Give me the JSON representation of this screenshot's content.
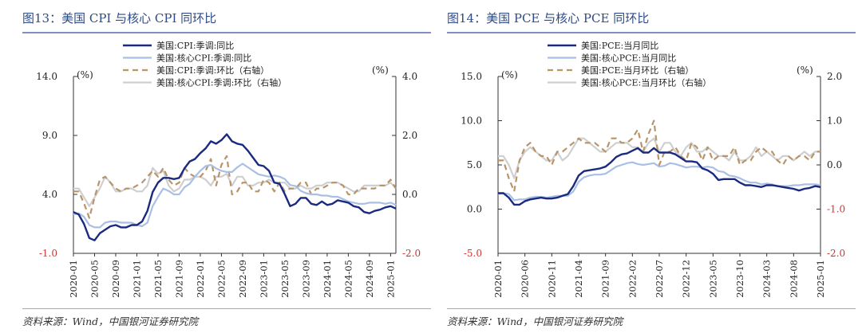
{
  "source_text": "资料来源：Wind，中国银河证券研究院",
  "colors": {
    "navy": "#1a2a80",
    "lightblue": "#a9bfe3",
    "tan": "#b8946a",
    "gray": "#cfcfcf",
    "red": "#d4322c",
    "title": "#2e4a86"
  },
  "chart_data": [
    {
      "type": "line",
      "title": "图13：美国 CPI 与核心 CPI 同环比",
      "y_unit_left": "(%)",
      "y_unit_right": "(%)",
      "ylim_left": [
        -1.0,
        14.0
      ],
      "ylim_right": [
        -2.0,
        4.0
      ],
      "yticks_left": [
        "14.0",
        "9.0",
        "4.0",
        "-1.0"
      ],
      "yticks_right": [
        "4.0",
        "2.0",
        "0.0",
        "-2.0"
      ],
      "x_range": [
        "2020-01",
        "2025-02"
      ],
      "xticks": [
        "2020-01",
        "2020-05",
        "2020-09",
        "2021-01",
        "2021-05",
        "2021-09",
        "2022-01",
        "2022-05",
        "2022-09",
        "2023-01",
        "2023-05",
        "2023-09",
        "2024-01",
        "2024-05",
        "2024-09",
        "2025-01"
      ],
      "legend": [
        "美国:CPI:季调:同比",
        "美国:核心CPI:季调:同比",
        "美国:CPI:季调:环比（右轴）",
        "美国:核心CPI:季调:环比（右轴）"
      ],
      "series": [
        {
          "name": "美国:CPI:季调:同比",
          "axis": "left",
          "style": "solid-dark",
          "start": "2020-01",
          "values": [
            2.5,
            2.3,
            1.5,
            0.3,
            0.1,
            0.7,
            1.0,
            1.3,
            1.4,
            1.2,
            1.2,
            1.4,
            1.4,
            1.7,
            2.6,
            4.2,
            5.0,
            5.4,
            5.4,
            5.3,
            5.4,
            6.2,
            6.8,
            7.0,
            7.5,
            7.9,
            8.5,
            8.3,
            8.6,
            9.1,
            8.5,
            8.3,
            8.2,
            7.7,
            7.1,
            6.5,
            6.4,
            6.0,
            5.0,
            4.9,
            4.0,
            3.0,
            3.2,
            3.7,
            3.7,
            3.2,
            3.1,
            3.4,
            3.1,
            3.2,
            3.5,
            3.4,
            3.3,
            3.0,
            2.9,
            2.5,
            2.4,
            2.6,
            2.7,
            2.9,
            3.0,
            2.8
          ]
        },
        {
          "name": "美国:核心CPI:季调:同比",
          "axis": "left",
          "style": "solid-light",
          "start": "2020-01",
          "values": [
            2.3,
            2.4,
            2.1,
            1.4,
            1.2,
            1.2,
            1.6,
            1.7,
            1.7,
            1.6,
            1.6,
            1.6,
            1.4,
            1.3,
            1.6,
            3.0,
            3.8,
            4.5,
            4.3,
            4.0,
            4.0,
            4.6,
            4.9,
            5.5,
            6.0,
            6.4,
            6.5,
            6.2,
            6.0,
            5.9,
            5.9,
            6.3,
            6.6,
            6.3,
            6.0,
            5.7,
            5.6,
            5.5,
            5.6,
            5.5,
            5.3,
            4.8,
            4.7,
            4.3,
            4.1,
            4.0,
            4.0,
            3.9,
            3.9,
            3.8,
            3.8,
            3.6,
            3.4,
            3.3,
            3.2,
            3.2,
            3.3,
            3.3,
            3.3,
            3.2,
            3.3,
            3.1
          ]
        },
        {
          "name": "美国:CPI:季调:环比（右轴）",
          "axis": "right",
          "style": "dashed-tan",
          "start": "2020-01",
          "values": [
            0.1,
            0.1,
            -0.3,
            -0.8,
            -0.1,
            0.5,
            0.6,
            0.4,
            0.2,
            0.1,
            0.2,
            0.2,
            0.3,
            0.4,
            0.6,
            0.8,
            0.6,
            0.9,
            0.5,
            0.3,
            0.4,
            0.9,
            0.7,
            0.6,
            0.6,
            0.8,
            1.2,
            0.3,
            1.0,
            1.3,
            0.0,
            0.1,
            0.4,
            0.4,
            0.1,
            0.1,
            0.5,
            0.4,
            0.1,
            0.4,
            0.1,
            0.2,
            0.2,
            0.4,
            0.4,
            0.0,
            0.2,
            0.2,
            0.3,
            0.4,
            0.4,
            0.3,
            0.0,
            0.0,
            0.2,
            0.2,
            0.2,
            0.2,
            0.3,
            0.3,
            0.5,
            0.2
          ]
        },
        {
          "name": "美国:核心CPI:季调:环比（右轴）",
          "axis": "right",
          "style": "solid-gray",
          "start": "2020-01",
          "values": [
            0.2,
            0.2,
            -0.1,
            -0.4,
            -0.1,
            0.2,
            0.6,
            0.4,
            0.1,
            0.1,
            0.2,
            0.2,
            0.1,
            0.1,
            0.3,
            0.9,
            0.7,
            0.8,
            0.3,
            0.1,
            0.2,
            0.5,
            0.5,
            0.6,
            0.6,
            0.5,
            0.3,
            0.6,
            0.6,
            0.7,
            0.3,
            0.6,
            0.6,
            0.3,
            0.3,
            0.4,
            0.4,
            0.5,
            0.4,
            0.4,
            0.4,
            0.2,
            0.2,
            0.3,
            0.2,
            0.2,
            0.3,
            0.3,
            0.4,
            0.4,
            0.4,
            0.3,
            0.2,
            0.1,
            0.1,
            0.3,
            0.3,
            0.3,
            0.3,
            0.3,
            0.4,
            0.2
          ]
        }
      ]
    },
    {
      "type": "line",
      "title": "图14：美国 PCE 与核心 PCE 同环比",
      "y_unit_left": "(%)",
      "y_unit_right": "(%)",
      "ylim_left": [
        -5.0,
        15.0
      ],
      "ylim_right": [
        -2.0,
        2.0
      ],
      "yticks_left": [
        "15.0",
        "10.0",
        "5.0",
        "0.0",
        "-5.0"
      ],
      "yticks_right": [
        "2.0",
        "1.0",
        "0.0",
        "-1.0",
        "-2.0"
      ],
      "x_range": [
        "2020-01",
        "2025-01"
      ],
      "xticks": [
        "2020-01",
        "2020-06",
        "2020-11",
        "2021-04",
        "2021-09",
        "2022-02",
        "2022-07",
        "2022-12",
        "2023-05",
        "2023-10",
        "2024-03",
        "2024-08",
        "2025-01"
      ],
      "legend": [
        "美国:PCE:当月同比",
        "美国:核心PCE:当月同比",
        "美国:PCE:当月环比（右轴）",
        "美国:核心PCE:当月环比（右轴）"
      ],
      "series": [
        {
          "name": "美国:PCE:当月同比",
          "axis": "left",
          "style": "solid-dark",
          "start": "2020-01",
          "values": [
            1.8,
            1.8,
            1.3,
            0.5,
            0.5,
            0.9,
            1.1,
            1.2,
            1.3,
            1.2,
            1.2,
            1.3,
            1.5,
            1.7,
            2.6,
            3.8,
            4.3,
            4.4,
            4.5,
            4.6,
            4.8,
            5.3,
            5.9,
            6.2,
            6.3,
            6.6,
            6.9,
            6.4,
            6.4,
            6.9,
            6.4,
            6.4,
            6.4,
            6.2,
            5.8,
            5.4,
            5.4,
            5.3,
            4.6,
            4.4,
            4.0,
            3.3,
            3.4,
            3.4,
            3.4,
            3.0,
            2.7,
            2.7,
            2.6,
            2.5,
            2.7,
            2.7,
            2.6,
            2.5,
            2.4,
            2.3,
            2.1,
            2.3,
            2.4,
            2.6,
            2.5
          ]
        },
        {
          "name": "美国:核心PCE:当月同比",
          "axis": "left",
          "style": "solid-light",
          "start": "2020-01",
          "values": [
            1.7,
            1.8,
            1.7,
            1.0,
            1.1,
            1.1,
            1.3,
            1.4,
            1.4,
            1.3,
            1.4,
            1.5,
            1.5,
            1.5,
            2.0,
            3.1,
            3.6,
            3.8,
            3.9,
            3.9,
            4.0,
            4.4,
            4.8,
            5.0,
            5.2,
            5.3,
            5.1,
            5.0,
            5.1,
            5.2,
            4.8,
            4.9,
            5.2,
            5.1,
            4.9,
            4.7,
            4.8,
            4.8,
            4.7,
            4.8,
            4.7,
            4.3,
            4.2,
            3.8,
            3.7,
            3.5,
            3.2,
            3.0,
            3.0,
            2.8,
            2.9,
            2.8,
            2.6,
            2.6,
            2.6,
            2.7,
            2.7,
            2.8,
            2.8,
            2.8,
            2.7
          ]
        },
        {
          "name": "美国:PCE:当月环比（右轴）",
          "axis": "right",
          "style": "dashed-tan",
          "start": "2020-01",
          "values": [
            0.1,
            0.1,
            -0.3,
            -0.6,
            0.1,
            0.4,
            0.5,
            0.3,
            0.2,
            0.2,
            0.0,
            0.3,
            0.3,
            0.4,
            0.5,
            0.6,
            0.5,
            0.5,
            0.5,
            0.4,
            0.3,
            0.6,
            0.6,
            0.5,
            0.5,
            0.6,
            0.8,
            0.3,
            0.7,
            1.0,
            0.0,
            0.3,
            0.3,
            0.4,
            0.2,
            0.1,
            0.5,
            0.4,
            0.1,
            0.4,
            0.1,
            0.2,
            0.2,
            0.2,
            0.4,
            0.0,
            0.1,
            0.1,
            0.3,
            0.4,
            0.3,
            0.3,
            0.1,
            0.0,
            0.2,
            0.1,
            0.2,
            0.2,
            0.1,
            0.3,
            0.3
          ]
        },
        {
          "name": "美国:核心PCE:当月环比（右轴）",
          "axis": "right",
          "style": "solid-gray",
          "start": "2020-01",
          "values": [
            0.2,
            0.2,
            0.0,
            -0.3,
            0.1,
            0.3,
            0.4,
            0.3,
            0.2,
            0.1,
            0.1,
            0.3,
            0.1,
            0.2,
            0.4,
            0.6,
            0.6,
            0.5,
            0.4,
            0.3,
            0.3,
            0.4,
            0.5,
            0.5,
            0.5,
            0.4,
            0.4,
            0.3,
            0.5,
            0.6,
            0.3,
            0.5,
            0.5,
            0.3,
            0.2,
            0.4,
            0.5,
            0.3,
            0.3,
            0.4,
            0.3,
            0.2,
            0.2,
            0.1,
            0.3,
            0.1,
            0.1,
            0.2,
            0.4,
            0.2,
            0.3,
            0.2,
            0.1,
            0.2,
            0.2,
            0.1,
            0.2,
            0.3,
            0.2,
            0.3,
            0.3
          ]
        }
      ]
    }
  ]
}
